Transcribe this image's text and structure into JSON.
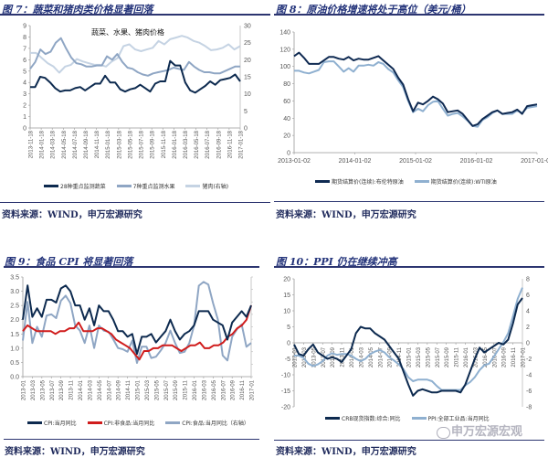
{
  "source_text": "资料来源：WIND，申万宏源研究",
  "watermark": "申万宏源宏观",
  "chart_data": [
    {
      "figure_title": "图 7：蔬菜和猪肉类价格显著回落",
      "type": "line",
      "title": "蔬菜、水果、猪肉价格",
      "ylim": [
        0,
        9
      ],
      "yticks": [
        "0",
        "1",
        "2",
        "3",
        "4",
        "5",
        "6",
        "7",
        "8",
        "9"
      ],
      "y2lim": [
        0,
        30
      ],
      "y2ticks": [
        "0",
        "5",
        "10",
        "15",
        "20",
        "25",
        "30"
      ],
      "xlabels": [
        "2013-11-18",
        "2014-01-18",
        "2014-03-18",
        "2014-05-18",
        "2014-07-18",
        "2014-09-18",
        "2014-11-18",
        "2015-01-18",
        "2015-03-18",
        "2015-05-18",
        "2015-07-18",
        "2015-09-18",
        "2015-11-18",
        "2016-01-18",
        "2016-03-18",
        "2016-05-18",
        "2016-07-18",
        "2016-09-18",
        "2016-11-18",
        "2017-01-18"
      ],
      "series": [
        {
          "name": "28种重点监测蔬菜",
          "axis": "left",
          "color": "#0d2a4f",
          "values": [
            3.6,
            3.6,
            4.5,
            4.4,
            4.0,
            3.5,
            3.2,
            3.3,
            3.3,
            3.5,
            3.6,
            3.3,
            3.6,
            3.9,
            3.9,
            4.6,
            4.0,
            4.0,
            3.4,
            3.2,
            3.4,
            3.5,
            3.8,
            3.5,
            3.2,
            3.9,
            4.1,
            4.1,
            5.9,
            5.5,
            5.5,
            4.0,
            3.3,
            3.1,
            3.4,
            3.7,
            4.1,
            3.8,
            4.2,
            4.3,
            4.4,
            4.7,
            4.1
          ]
        },
        {
          "name": "7种重点监测水果",
          "axis": "left",
          "color": "#8fa6c4",
          "values": [
            5.2,
            5.8,
            6.9,
            6.5,
            6.7,
            7.5,
            7.9,
            7.0,
            6.2,
            5.7,
            5.6,
            5.4,
            5.4,
            5.5,
            5.5,
            6.3,
            6.0,
            6.5,
            5.8,
            5.3,
            5.2,
            4.9,
            4.7,
            4.6,
            4.8,
            4.9,
            5.0,
            5.1,
            5.3,
            5.2,
            5.1,
            5.8,
            5.4,
            5.1,
            4.9,
            4.9,
            4.8,
            4.8,
            5.0,
            5.2,
            5.4,
            5.4
          ]
        },
        {
          "name": "猪肉(右轴)",
          "axis": "right",
          "color": "#c5d3e3",
          "values": [
            22,
            22,
            20.5,
            19,
            18,
            16.2,
            18,
            18.5,
            20.2,
            19.5,
            19,
            18.5,
            18.5,
            18,
            19.5,
            20.5,
            24,
            24.5,
            23,
            22.5,
            23,
            23.5,
            25.5,
            24.5,
            26,
            26.5,
            27,
            26.5,
            25.5,
            25,
            24,
            22.8,
            23,
            23.5,
            24.5,
            23,
            24
          ]
        }
      ]
    },
    {
      "figure_title": "图 8：原油价格增速将处于高位（美元/桶）",
      "type": "line",
      "ylim": [
        0,
        140
      ],
      "yticks": [
        "0",
        "20",
        "40",
        "60",
        "80",
        "100",
        "120",
        "140"
      ],
      "xlabels": [
        "2013-01-02",
        "2014-01-02",
        "2015-01-02",
        "2016-01-02",
        "2017-01-02"
      ],
      "series": [
        {
          "name": "期货结算价(连续):布伦特原油",
          "axis": "left",
          "color": "#0f2a52",
          "values": [
            112,
            116,
            110,
            103,
            103,
            103,
            107,
            111,
            111,
            109,
            108,
            111,
            107,
            109,
            108,
            108,
            110,
            112,
            107,
            102,
            97,
            87,
            79,
            62,
            48,
            58,
            56,
            60,
            65,
            62,
            57,
            47,
            48,
            49,
            45,
            38,
            31,
            33,
            39,
            43,
            47,
            49,
            45,
            46,
            47,
            50,
            45,
            54,
            55,
            56
          ]
        },
        {
          "name": "期货结算价(连续):WTI原油",
          "axis": "left",
          "color": "#8fb0d0",
          "values": [
            95,
            95,
            93,
            92,
            94,
            96,
            105,
            106,
            106,
            100,
            94,
            98,
            94,
            101,
            101,
            102,
            101,
            105,
            103,
            97,
            93,
            84,
            76,
            60,
            47,
            51,
            48,
            55,
            59,
            60,
            51,
            43,
            45,
            46,
            42,
            37,
            31,
            30,
            38,
            41,
            46,
            49,
            45,
            45,
            45,
            49,
            46,
            52,
            53,
            54
          ]
        }
      ]
    },
    {
      "figure_title": "图 9：食品 CPI 将显著回落",
      "type": "line",
      "ylim": [
        0,
        3.5
      ],
      "yticks": [
        "0.0",
        "0.5",
        "1.0",
        "1.5",
        "2.0",
        "2.5",
        "3.0",
        "3.5"
      ],
      "y2lim": [
        0,
        8
      ],
      "xlabels": [
        "2013-01",
        "2013-03",
        "2013-05",
        "2013-07",
        "2013-09",
        "2013-11",
        "2014-01",
        "2014-03",
        "2014-05",
        "2014-07",
        "2014-09",
        "2014-11",
        "2015-01",
        "2015-03",
        "2015-05",
        "2015-07",
        "2015-09",
        "2015-11",
        "2016-01",
        "2016-03",
        "2016-05",
        "2016-07",
        "2016-09",
        "2016-11",
        "2017-01"
      ],
      "series": [
        {
          "name": "CPI:当月同比",
          "axis": "left",
          "color": "#0d2a4f",
          "values": [
            2.0,
            3.2,
            2.1,
            2.4,
            2.1,
            2.7,
            2.7,
            2.6,
            3.1,
            3.2,
            3.0,
            2.5,
            2.5,
            2.0,
            2.4,
            1.8,
            2.5,
            2.3,
            2.3,
            2.0,
            1.6,
            1.6,
            1.4,
            1.5,
            0.8,
            1.4,
            1.4,
            1.5,
            1.2,
            1.4,
            1.6,
            2.0,
            1.6,
            1.3,
            1.5,
            1.6,
            1.8,
            2.3,
            2.3,
            2.3,
            2.0,
            1.9,
            1.8,
            1.3,
            1.9,
            2.1,
            2.3,
            2.1,
            2.5
          ]
        },
        {
          "name": "CPI:非食品:当月同比",
          "axis": "left",
          "color": "#d01c1c",
          "values": [
            1.6,
            1.8,
            1.7,
            1.6,
            1.6,
            1.6,
            1.6,
            1.5,
            1.6,
            1.6,
            1.7,
            1.7,
            1.9,
            1.6,
            1.6,
            1.6,
            1.7,
            1.7,
            1.6,
            1.5,
            1.3,
            1.2,
            1.1,
            1.0,
            0.8,
            0.6,
            0.9,
            0.9,
            1.0,
            1.0,
            1.1,
            1.1,
            1.1,
            1.0,
            0.9,
            1.0,
            1.1,
            1.1,
            1.2,
            1.0,
            1.0,
            1.1,
            1.1,
            1.2,
            1.4,
            1.5,
            1.7,
            1.8,
            2.0,
            2.5
          ]
        },
        {
          "name": "CPI:食品:当月同比（右轴）",
          "axis": "right",
          "color": "#8fa6c4",
          "values": [
            2.9,
            6.0,
            2.7,
            4.0,
            3.2,
            4.9,
            5.0,
            4.7,
            6.1,
            6.5,
            5.9,
            4.1,
            3.7,
            2.7,
            4.1,
            2.3,
            4.1,
            3.7,
            3.6,
            3.0,
            2.3,
            2.2,
            2.0,
            2.9,
            1.1,
            2.4,
            2.4,
            1.5,
            1.6,
            2.1,
            2.7,
            3.7,
            2.7,
            1.9,
            2.0,
            2.7,
            4.1,
            7.3,
            7.6,
            7.4,
            5.9,
            4.6,
            1.7,
            1.3,
            3.2,
            3.8,
            4.2,
            2.4,
            2.7
          ]
        }
      ]
    },
    {
      "figure_title": "图 10：PPI 仍在继续冲高",
      "type": "line",
      "ylim": [
        -20,
        20
      ],
      "yticks": [
        "-20",
        "-15",
        "-10",
        "-5",
        "0",
        "5",
        "10",
        "15",
        "20"
      ],
      "y2lim": [
        -8,
        8
      ],
      "y2ticks": [
        "-8",
        "-6",
        "-4",
        "-2",
        "0",
        "2",
        "4",
        "6",
        "8"
      ],
      "xlabels": [
        "2013-01",
        "2013-03",
        "2013-05",
        "2013-07",
        "2013-09",
        "2013-11",
        "2014-01",
        "2014-03",
        "2014-05",
        "2014-07",
        "2014-09",
        "2014-11",
        "2015-01",
        "2015-03",
        "2015-05",
        "2015-07",
        "2015-09",
        "2015-11",
        "2016-01",
        "2016-03",
        "2016-05",
        "2016-07",
        "2016-09",
        "2016-11",
        "2017-01"
      ],
      "series": [
        {
          "name": "CRB现货指数:综合:同比",
          "axis": "left",
          "color": "#0d2a4f",
          "values": [
            -0.5,
            -3.5,
            -4,
            -2,
            -0.5,
            -3,
            -4,
            -5,
            -4.5,
            -5,
            -6,
            -4,
            -2,
            3,
            5,
            4.5,
            4.5,
            3,
            2,
            1,
            -1,
            -3,
            -5,
            -9,
            -13,
            -16.5,
            -15,
            -14.5,
            -15,
            -15.5,
            -15.5,
            -15,
            -15,
            -15,
            -15,
            -15.5,
            -13,
            -9,
            -5,
            -1.5,
            -3,
            -2,
            -1,
            0,
            -0.5,
            1,
            6,
            12,
            14
          ]
        },
        {
          "name": "PPI:全部工业品:当月同比",
          "axis": "right",
          "color": "#8fb0d0",
          "values": [
            -1.6,
            -1.6,
            -1.9,
            -2.6,
            -2.9,
            -2.7,
            -2.3,
            -1.6,
            -1.3,
            -1.5,
            -1.4,
            -1.4,
            -1.6,
            -2.0,
            -2.3,
            -2.0,
            -1.4,
            -1.1,
            -0.9,
            -1.2,
            -1.8,
            -2.2,
            -2.7,
            -3.3,
            -4.3,
            -4.8,
            -4.6,
            -4.6,
            -4.6,
            -4.8,
            -5.4,
            -5.9,
            -5.9,
            -5.9,
            -5.9,
            -5.9,
            -5.3,
            -4.9,
            -4.3,
            -3.4,
            -2.8,
            -2.6,
            -1.7,
            -0.8,
            0.1,
            1.2,
            3.3,
            5.5,
            6.9
          ]
        }
      ]
    }
  ]
}
